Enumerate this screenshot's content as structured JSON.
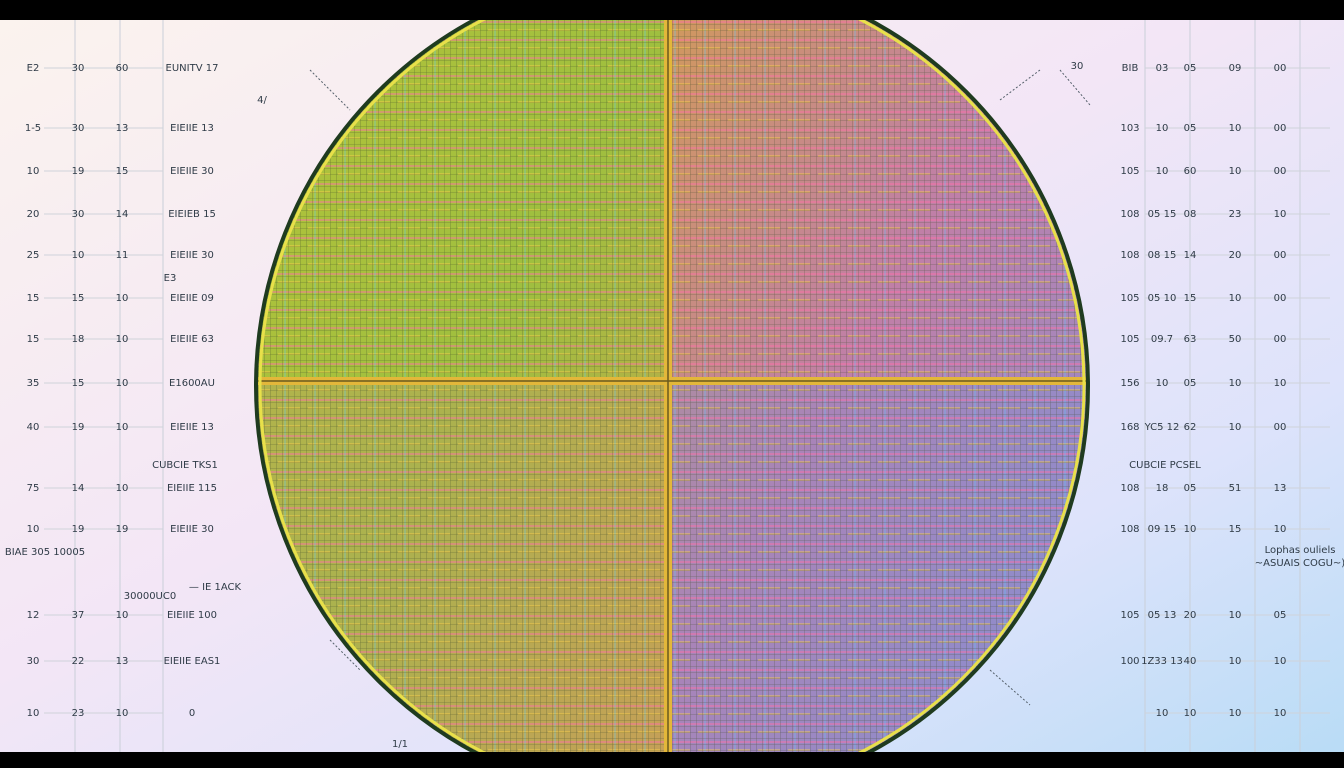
{
  "left_rows": [
    [
      "E2",
      "30",
      "60",
      "EUNITV 17"
    ],
    [
      "1-5",
      "30",
      "13",
      "EIEIIE 13"
    ],
    [
      "10",
      "19",
      "15",
      "EIEIIE 30"
    ],
    [
      "20",
      "30",
      "14",
      "EIEIEB 15"
    ],
    [
      "25",
      "10",
      "11",
      "EIEIIE 30"
    ],
    [
      "15",
      "15",
      "10",
      "EIEIIE 09"
    ],
    [
      "15",
      "18",
      "10",
      "EIEIIE 63"
    ],
    [
      "35",
      "15",
      "10",
      "E1600AU"
    ],
    [
      "40",
      "19",
      "10",
      "EIEIIE 13"
    ],
    [
      "75",
      "14",
      "10",
      "EIEIIE 115"
    ],
    [
      "10",
      "19",
      "19",
      "EIEIIE 30"
    ],
    [
      "12",
      "37",
      "10",
      "EIEIIE 100"
    ],
    [
      "30",
      "22",
      "13",
      "EIEIIE EAS1"
    ],
    [
      "10",
      "23",
      "10",
      "0"
    ]
  ],
  "right_rows": [
    [
      "BIB",
      "03",
      "05",
      "09",
      "00"
    ],
    [
      "103",
      "10",
      "05",
      "10",
      "00"
    ],
    [
      "105",
      "10",
      "60",
      "10",
      "00"
    ],
    [
      "108",
      "05 15",
      "08",
      "23",
      "10"
    ],
    [
      "108",
      "08 15",
      "14",
      "20",
      "00"
    ],
    [
      "105",
      "05 10",
      "15",
      "10",
      "00"
    ],
    [
      "105",
      "09.7",
      "63",
      "50",
      "00"
    ],
    [
      "156",
      "10",
      "05",
      "10",
      "10"
    ],
    [
      "168",
      "YC5 12",
      "62",
      "10",
      "00"
    ],
    [
      "108",
      "18",
      "05",
      "51",
      "13"
    ],
    [
      "108",
      "09 15",
      "10",
      "15",
      "10"
    ],
    [
      "105",
      "05 13",
      "20",
      "10",
      "05"
    ],
    [
      "100",
      "1Z33 13",
      "40",
      "10",
      "10"
    ],
    [
      "10",
      "10",
      "10",
      "10"
    ]
  ],
  "left_notes": [
    "E3",
    "CUBCIE TKS1",
    "BIAE 305   10005",
    "30000UC0",
    "— IE 1ACK",
    "4/",
    "1/1"
  ],
  "right_notes": [
    "30",
    "CUBCIE PCSEL",
    "Lophas ouliels",
    "~ASUAIS COGU~)"
  ]
}
